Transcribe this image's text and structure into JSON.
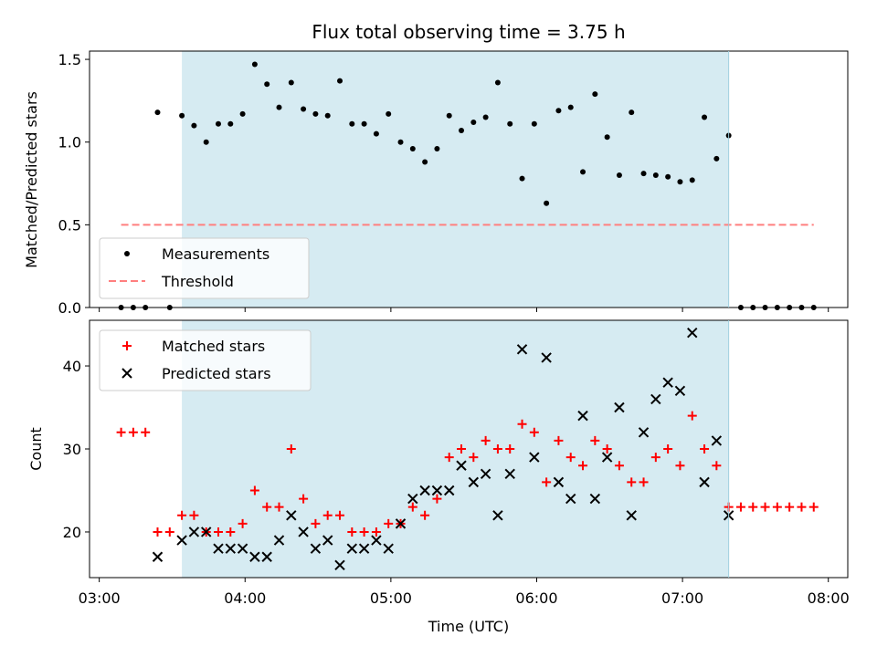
{
  "chart_data": [
    {
      "type": "scatter",
      "title": "Flux total observing time = 3.75 h",
      "xlabel": "",
      "ylabel": "Matched/Predicted stars",
      "xlim": [
        "02:56",
        "08:08"
      ],
      "ylim": [
        0,
        1.55
      ],
      "yticks": [
        0.0,
        0.5,
        1.0,
        1.5
      ],
      "ytick_labels": [
        "0.0",
        "0.5",
        "1.0",
        "1.5"
      ],
      "shaded_interval": [
        "03:34",
        "07:19"
      ],
      "shade_color": "#add8e6",
      "legend": {
        "placement": "lower-left",
        "entries": [
          "Measurements",
          "Threshold"
        ]
      },
      "series": [
        {
          "name": "Measurements",
          "marker": "dot",
          "color": "#000000",
          "x": [
            "03:09",
            "03:14",
            "03:19",
            "03:24",
            "03:29",
            "03:34",
            "03:39",
            "03:44",
            "03:49",
            "03:54",
            "03:59",
            "04:04",
            "04:09",
            "04:14",
            "04:19",
            "04:24",
            "04:29",
            "04:34",
            "04:39",
            "04:44",
            "04:49",
            "04:54",
            "04:59",
            "05:04",
            "05:09",
            "05:14",
            "05:19",
            "05:24",
            "05:29",
            "05:34",
            "05:39",
            "05:44",
            "05:49",
            "05:54",
            "05:59",
            "06:04",
            "06:09",
            "06:14",
            "06:19",
            "06:24",
            "06:29",
            "06:34",
            "06:39",
            "06:44",
            "06:49",
            "06:54",
            "06:59",
            "07:04",
            "07:09",
            "07:14",
            "07:19",
            "07:24",
            "07:29",
            "07:34",
            "07:39",
            "07:44",
            "07:49",
            "07:54"
          ],
          "y": [
            0,
            0,
            0,
            1.18,
            0,
            1.16,
            1.1,
            1.0,
            1.11,
            1.11,
            1.17,
            1.47,
            1.35,
            1.21,
            1.36,
            1.2,
            1.17,
            1.16,
            1.37,
            1.11,
            1.11,
            1.05,
            1.17,
            1.0,
            0.96,
            0.88,
            0.96,
            1.16,
            1.07,
            1.12,
            1.15,
            1.36,
            1.11,
            0.78,
            1.11,
            0.63,
            1.19,
            1.21,
            0.82,
            1.29,
            1.03,
            0.8,
            1.18,
            0.81,
            0.8,
            0.79,
            0.76,
            0.77,
            1.15,
            0.9,
            1.04,
            0,
            0,
            0,
            0,
            0,
            0,
            0
          ]
        },
        {
          "name": "Threshold",
          "style": "dashed",
          "color": "#ff7f7f",
          "x": [
            "03:09",
            "07:54"
          ],
          "y": [
            0.5,
            0.5
          ]
        }
      ]
    },
    {
      "type": "scatter",
      "title": "",
      "xlabel": "Time (UTC)",
      "ylabel": "Count",
      "xlim": [
        "02:56",
        "08:08"
      ],
      "xticks": [
        "03:00",
        "04:00",
        "05:00",
        "06:00",
        "07:00",
        "08:00"
      ],
      "ylim": [
        14.5,
        45.5
      ],
      "yticks": [
        20,
        30,
        40
      ],
      "ytick_labels": [
        "20",
        "30",
        "40"
      ],
      "shaded_interval": [
        "03:34",
        "07:19"
      ],
      "shade_color": "#add8e6",
      "legend": {
        "placement": "upper-left",
        "entries": [
          "Matched stars",
          "Predicted stars"
        ]
      },
      "series": [
        {
          "name": "Matched stars",
          "marker": "plus",
          "color": "#ff0000",
          "x": [
            "03:09",
            "03:14",
            "03:19",
            "03:24",
            "03:29",
            "03:34",
            "03:39",
            "03:44",
            "03:49",
            "03:54",
            "03:59",
            "04:04",
            "04:09",
            "04:14",
            "04:19",
            "04:24",
            "04:29",
            "04:34",
            "04:39",
            "04:44",
            "04:49",
            "04:54",
            "04:59",
            "05:04",
            "05:09",
            "05:14",
            "05:19",
            "05:24",
            "05:29",
            "05:34",
            "05:39",
            "05:44",
            "05:49",
            "05:54",
            "05:59",
            "06:04",
            "06:09",
            "06:14",
            "06:19",
            "06:24",
            "06:29",
            "06:34",
            "06:39",
            "06:44",
            "06:49",
            "06:54",
            "06:59",
            "07:04",
            "07:09",
            "07:14",
            "07:19",
            "07:24",
            "07:29",
            "07:34",
            "07:39",
            "07:44",
            "07:49",
            "07:54"
          ],
          "y": [
            32,
            32,
            32,
            20,
            20,
            22,
            22,
            20,
            20,
            20,
            21,
            25,
            23,
            23,
            30,
            24,
            21,
            22,
            22,
            20,
            20,
            20,
            21,
            21,
            23,
            22,
            24,
            29,
            30,
            29,
            31,
            30,
            30,
            33,
            32,
            26,
            31,
            29,
            28,
            31,
            30,
            28,
            26,
            26,
            29,
            30,
            28,
            34,
            30,
            28,
            23,
            23,
            23,
            23,
            23,
            23,
            23,
            23
          ]
        },
        {
          "name": "Predicted stars",
          "marker": "x",
          "color": "#000000",
          "x": [
            "03:24",
            "03:34",
            "03:39",
            "03:44",
            "03:49",
            "03:54",
            "03:59",
            "04:04",
            "04:09",
            "04:14",
            "04:19",
            "04:24",
            "04:29",
            "04:34",
            "04:39",
            "04:44",
            "04:49",
            "04:54",
            "04:59",
            "05:04",
            "05:09",
            "05:14",
            "05:19",
            "05:24",
            "05:29",
            "05:34",
            "05:39",
            "05:44",
            "05:49",
            "05:54",
            "05:59",
            "06:04",
            "06:09",
            "06:14",
            "06:19",
            "06:24",
            "06:29",
            "06:34",
            "06:39",
            "06:44",
            "06:49",
            "06:54",
            "06:59",
            "07:04",
            "07:09",
            "07:14",
            "07:19"
          ],
          "y": [
            17,
            19,
            20,
            20,
            18,
            18,
            18,
            17,
            17,
            19,
            22,
            20,
            18,
            19,
            16,
            18,
            18,
            19,
            18,
            21,
            24,
            25,
            25,
            25,
            28,
            26,
            27,
            22,
            27,
            42,
            29,
            41,
            26,
            24,
            34,
            24,
            29,
            35,
            22,
            32,
            36,
            38,
            37,
            44,
            26,
            31,
            22
          ]
        }
      ]
    }
  ]
}
